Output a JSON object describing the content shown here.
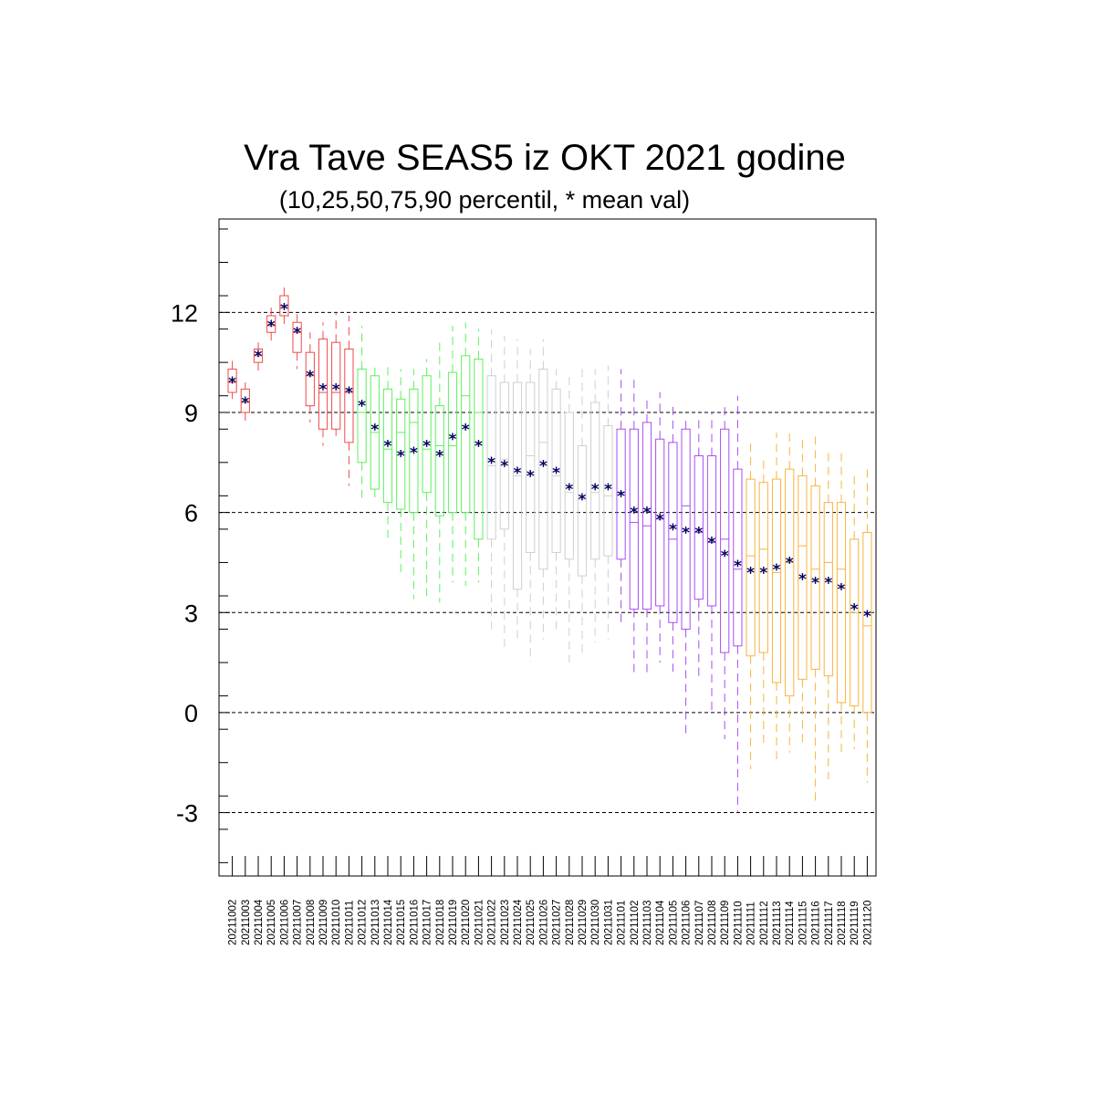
{
  "chart_data": {
    "type": "box",
    "title": "Vra Tave SEAS5 iz OKT 2021 godine",
    "subtitle": "(10,25,50,75,90 percentil, * mean val)",
    "ylim": [
      -4.9,
      14.8
    ],
    "yticks": [
      "-3",
      "0",
      "3",
      "6",
      "9",
      "12"
    ],
    "ytick_values": [
      -3,
      0,
      3,
      6,
      9,
      12
    ],
    "grid": "horizontal dashed at major ticks",
    "group_colors": {
      "red": "#f04a4a",
      "green": "#5ef05e",
      "gray": "#cfcfcf",
      "purple": "#a84df0",
      "orange": "#f7b43e"
    },
    "mean_marker_color": "#000060",
    "categories": [
      "20211002",
      "20211003",
      "20211004",
      "20211005",
      "20211006",
      "20211007",
      "20211008",
      "20211009",
      "20211010",
      "20211011",
      "20211012",
      "20211013",
      "20211014",
      "20211015",
      "20211016",
      "20211017",
      "20211018",
      "20211019",
      "20211020",
      "20211021",
      "20211022",
      "20211023",
      "20211024",
      "20211025",
      "20211026",
      "20211027",
      "20211028",
      "20211029",
      "20211030",
      "20211031",
      "20211101",
      "20211102",
      "20211103",
      "20211104",
      "20211105",
      "20211106",
      "20211107",
      "20211108",
      "20211109",
      "20211110",
      "20211111",
      "20211112",
      "20211113",
      "20211114",
      "20211115",
      "20211116",
      "20211117",
      "20211118",
      "20211119",
      "20211120"
    ],
    "groups": [
      "red",
      "red",
      "red",
      "red",
      "red",
      "red",
      "red",
      "red",
      "red",
      "red",
      "green",
      "green",
      "green",
      "green",
      "green",
      "green",
      "green",
      "green",
      "green",
      "green",
      "gray",
      "gray",
      "gray",
      "gray",
      "gray",
      "gray",
      "gray",
      "gray",
      "gray",
      "gray",
      "purple",
      "purple",
      "purple",
      "purple",
      "purple",
      "purple",
      "purple",
      "purple",
      "purple",
      "purple",
      "orange",
      "orange",
      "orange",
      "orange",
      "orange",
      "orange",
      "orange",
      "orange",
      "orange",
      "orange"
    ],
    "p10": [
      9.4,
      8.6,
      10.2,
      11.1,
      11.6,
      10.3,
      8.7,
      8.0,
      8.3,
      6.8,
      6.4,
      6.3,
      5.1,
      4.2,
      3.4,
      3.5,
      3.3,
      3.9,
      3.8,
      3.9,
      2.4,
      1.9,
      2.1,
      1.5,
      2.2,
      2.5,
      1.5,
      1.8,
      2.1,
      2.2,
      2.7,
      1.2,
      1.2,
      1.5,
      1.2,
      -0.7,
      1.0,
      0.0,
      -0.8,
      -3.0,
      -1.7,
      -1.0,
      -1.4,
      -1.2,
      -0.9,
      -2.7,
      -2.0,
      -1.3,
      -1.1,
      -2.1
    ],
    "p25": [
      9.6,
      9.0,
      10.5,
      11.4,
      11.9,
      10.8,
      9.2,
      8.5,
      8.5,
      8.1,
      7.5,
      6.7,
      6.3,
      6.1,
      6.0,
      6.6,
      5.9,
      6.0,
      6.0,
      5.2,
      5.2,
      5.5,
      3.7,
      4.8,
      4.3,
      4.8,
      4.6,
      4.1,
      4.6,
      4.7,
      4.6,
      3.1,
      3.1,
      3.2,
      2.7,
      2.5,
      3.4,
      3.2,
      1.8,
      2.0,
      1.7,
      1.8,
      0.9,
      0.5,
      1.0,
      1.3,
      1.1,
      0.3,
      0.2,
      0.0
    ],
    "p50": [
      9.9,
      9.3,
      10.7,
      11.6,
      12.2,
      11.4,
      10.1,
      9.6,
      9.6,
      9.6,
      9.0,
      8.4,
      7.9,
      8.4,
      8.7,
      7.9,
      8.0,
      8.0,
      9.5,
      9.0,
      7.4,
      7.6,
      7.1,
      7.7,
      8.1,
      7.1,
      6.6,
      6.4,
      6.6,
      6.5,
      6.6,
      5.7,
      5.6,
      5.8,
      5.2,
      6.2,
      5.4,
      5.1,
      5.2,
      4.3,
      4.7,
      4.9,
      4.2,
      4.5,
      5.0,
      4.3,
      4.5,
      4.3,
      3.0,
      2.6
    ],
    "p75": [
      10.3,
      9.7,
      10.9,
      11.9,
      12.5,
      11.7,
      10.8,
      11.2,
      11.1,
      10.9,
      10.3,
      10.1,
      9.7,
      9.4,
      9.7,
      10.1,
      9.2,
      10.2,
      10.7,
      10.6,
      10.1,
      9.9,
      9.9,
      9.9,
      10.3,
      9.7,
      9.0,
      8.0,
      9.3,
      8.6,
      8.5,
      8.5,
      8.7,
      8.2,
      8.1,
      8.5,
      7.7,
      7.7,
      8.5,
      7.3,
      7.0,
      6.9,
      7.0,
      7.3,
      7.1,
      6.8,
      6.3,
      6.3,
      5.2,
      5.4
    ],
    "p90": [
      10.6,
      9.9,
      11.1,
      12.2,
      12.8,
      12.1,
      11.4,
      11.7,
      12.0,
      11.9,
      11.6,
      10.4,
      10.4,
      10.3,
      10.3,
      10.6,
      11.2,
      11.6,
      11.7,
      11.5,
      11.5,
      11.3,
      11.2,
      10.9,
      11.2,
      10.3,
      10.1,
      10.3,
      10.3,
      10.4,
      10.3,
      10.1,
      9.4,
      9.6,
      9.3,
      8.8,
      8.8,
      9.0,
      9.2,
      9.5,
      8.1,
      7.7,
      8.4,
      8.4,
      8.3,
      8.4,
      7.9,
      7.8,
      7.1,
      7.3
    ],
    "mean": [
      9.9,
      9.3,
      10.7,
      11.6,
      12.1,
      11.4,
      10.1,
      9.7,
      9.7,
      9.6,
      9.2,
      8.5,
      8.0,
      7.7,
      7.8,
      8.0,
      7.7,
      8.2,
      8.5,
      8.0,
      7.5,
      7.4,
      7.2,
      7.1,
      7.4,
      7.2,
      6.7,
      6.4,
      6.7,
      6.7,
      6.5,
      6.0,
      6.0,
      5.8,
      5.5,
      5.4,
      5.4,
      5.1,
      4.7,
      4.4,
      4.2,
      4.2,
      4.3,
      4.5,
      4.0,
      3.9,
      3.9,
      3.7,
      3.1,
      2.9
    ]
  }
}
